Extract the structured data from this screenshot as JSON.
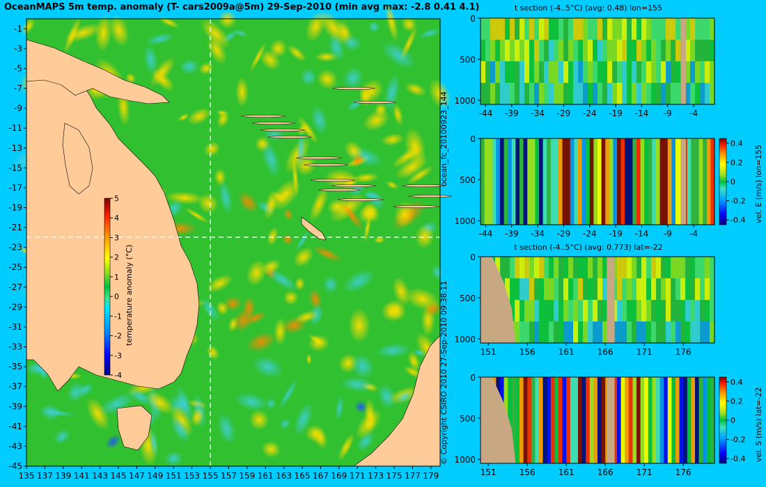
{
  "header": {
    "title": "OceanMAPS 5m temp. anomaly (T- cars2009a@5m) 29-Sep-2010 (min avg max: -2.8 0.41 4.1)"
  },
  "side_labels": {
    "run_id": "ocean_fc_20100923_144",
    "copyright": "© Copyright CSIRO 2010    27-Sep-2010 09:38:11"
  },
  "colors": {
    "background": "#00ccff",
    "land_map": "#ffcc99",
    "land_section": "#c8a882",
    "colormap": [
      "#00007f",
      "#0000ff",
      "#0080ff",
      "#00ffff",
      "#80ff80",
      "#00cc44",
      "#ffff00",
      "#ff8000",
      "#ff0000",
      "#7f0000"
    ]
  },
  "chart_data": [
    {
      "type": "heatmap",
      "name": "map",
      "title": "OceanMAPS 5m temp. anomaly (T- cars2009a@5m) 29-Sep-2010 (min avg max: -2.8 0.41 4.1)",
      "x_ticks": [
        "135",
        "137",
        "139",
        "141",
        "143",
        "145",
        "147",
        "149",
        "151",
        "153",
        "155",
        "157",
        "159",
        "161",
        "163",
        "165",
        "167",
        "169",
        "171",
        "173",
        "175",
        "177",
        "179"
      ],
      "y_ticks": [
        "-1",
        "-3",
        "-5",
        "-7",
        "-9",
        "-11",
        "-13",
        "-15",
        "-17",
        "-19",
        "-21",
        "-23",
        "-25",
        "-27",
        "-29",
        "-31",
        "-33",
        "-35",
        "-37",
        "-39",
        "-41",
        "-43",
        "-45"
      ],
      "xlim": [
        135,
        180
      ],
      "ylim": [
        -45,
        0
      ],
      "crosshair": {
        "lon": 155,
        "lat": -22
      },
      "colorbar": {
        "label": "temperature anomaly (°C)",
        "ticks": [
          "5",
          "4",
          "3",
          "2",
          "1",
          "0",
          "-1",
          "-2",
          "-3",
          "-4"
        ],
        "range": [
          -4,
          5
        ]
      },
      "stats": {
        "min": -2.8,
        "avg": 0.41,
        "max": 4.1
      }
    },
    {
      "type": "heatmap",
      "name": "t-section-lon155",
      "title": "t section (-4..5°C) (avg: 0.48) lon=155",
      "x_ticks": [
        "-44",
        "-39",
        "-34",
        "-29",
        "-24",
        "-19",
        "-14",
        "-9",
        "-4"
      ],
      "y_ticks": [
        "0",
        "500",
        "1000"
      ],
      "xlim": [
        -45,
        0
      ],
      "ylim": [
        1050,
        0
      ]
    },
    {
      "type": "heatmap",
      "name": "vel-e-section-lon155",
      "title": "",
      "x_ticks": [
        "-44",
        "-39",
        "-34",
        "-29",
        "-24",
        "-19",
        "-14",
        "-9",
        "-4"
      ],
      "y_ticks": [
        "0",
        "500",
        "1000"
      ],
      "xlim": [
        -45,
        0
      ],
      "ylim": [
        1050,
        0
      ],
      "colorbar": {
        "label": "vel. E (m/s) lon=155",
        "ticks": [
          "0.4",
          "0.2",
          "0",
          "-0.2",
          "-0.4"
        ],
        "range": [
          -0.45,
          0.45
        ]
      }
    },
    {
      "type": "heatmap",
      "name": "t-section-lat-22",
      "title": "t section (-4..5°C) (avg: 0.773) lat=-22",
      "x_ticks": [
        "151",
        "156",
        "161",
        "166",
        "171",
        "176"
      ],
      "y_ticks": [
        "0",
        "500",
        "1000"
      ],
      "xlim": [
        150,
        180
      ],
      "ylim": [
        1050,
        0
      ]
    },
    {
      "type": "heatmap",
      "name": "vel-s-section-lat-22",
      "title": "",
      "x_ticks": [
        "151",
        "156",
        "161",
        "166",
        "171",
        "176"
      ],
      "y_ticks": [
        "0",
        "500",
        "1000"
      ],
      "xlim": [
        150,
        180
      ],
      "ylim": [
        1050,
        0
      ],
      "colorbar": {
        "label": "vel. S (m/s) lat=-22",
        "ticks": [
          "0.4",
          "0.2",
          "0",
          "-0.2",
          "-0.4"
        ],
        "range": [
          -0.45,
          0.45
        ]
      }
    }
  ]
}
